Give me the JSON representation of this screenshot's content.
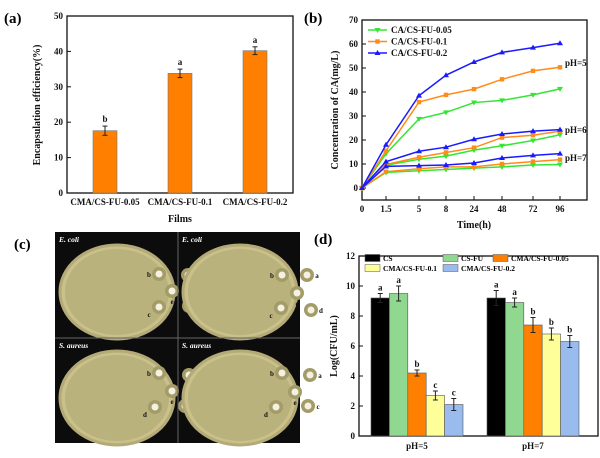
{
  "panels": {
    "a": "(a)",
    "b": "(b)",
    "c": "(c)",
    "d": "(d)"
  },
  "chart_data": [
    {
      "id": "a",
      "type": "bar",
      "title": "",
      "categories": [
        "CMA/CS-FU-0.05",
        "CMA/CS-FU-0.1",
        "CMA/CS-FU-0.2"
      ],
      "values": [
        17.6,
        33.8,
        40.2
      ],
      "errors": [
        1.3,
        1.2,
        1.1
      ],
      "letters": [
        "b",
        "a",
        "a"
      ],
      "xlabel": "Films",
      "ylabel": "Encapsulation efficiency(%)",
      "ylim": [
        0,
        50
      ],
      "yticks": [
        0,
        10,
        20,
        30,
        40,
        50
      ],
      "color": "#ff8000"
    },
    {
      "id": "b",
      "type": "line",
      "x": [
        "0",
        "1.5",
        "5",
        "8",
        "24",
        "48",
        "72",
        "96"
      ],
      "xlabel": "Time(h)",
      "ylabel": "Concentration of CA(mg/L)",
      "ylim": [
        -5,
        70
      ],
      "yticks": [
        0,
        10,
        20,
        30,
        40,
        50,
        60,
        70
      ],
      "legend": [
        {
          "name": "CA/CS-FU-0.05",
          "color": "#33e633",
          "marker": "triangle-down"
        },
        {
          "name": "CA/CS-FU-0.1",
          "color": "#ff8c1a",
          "marker": "square"
        },
        {
          "name": "CA/CS-FU-0.2",
          "color": "#1a1aff",
          "marker": "triangle-up"
        }
      ],
      "groups": [
        {
          "label": "pH=5",
          "series": [
            [
              0,
              14.3,
              28.8,
              31.5,
              35.6,
              36.5,
              38.8,
              41.3
            ],
            [
              0,
              15.5,
              35.8,
              38.8,
              41.2,
              45.3,
              48.8,
              50.3
            ],
            [
              0,
              18,
              38.5,
              47,
              52.5,
              56.5,
              58.5,
              60.3
            ]
          ]
        },
        {
          "label": "pH=6",
          "series": [
            [
              0,
              9.5,
              12,
              13.3,
              15.8,
              17.6,
              19.8,
              22.2
            ],
            [
              0,
              9.8,
              12.8,
              14.8,
              16.8,
              21,
              22,
              23.7
            ],
            [
              0,
              11,
              15.3,
              17,
              20.3,
              22.5,
              23.7,
              24.3
            ]
          ]
        },
        {
          "label": "pH=7",
          "series": [
            [
              0,
              6.5,
              7.2,
              7.7,
              8.3,
              8.8,
              9.6,
              9.8
            ],
            [
              0,
              6.8,
              8,
              8.8,
              8.8,
              10,
              11,
              11.8
            ],
            [
              0,
              9,
              9.3,
              9.6,
              10.4,
              12.5,
              13.6,
              14.3
            ]
          ]
        }
      ]
    },
    {
      "id": "d",
      "type": "bar",
      "categories": [
        "pH=5",
        "pH=7"
      ],
      "ylabel": "Log(CFU/mL)",
      "ylim": [
        0,
        12
      ],
      "yticks": [
        0,
        2,
        4,
        6,
        8,
        10,
        12
      ],
      "series": [
        {
          "name": "CS",
          "color": "#000000",
          "values": [
            9.2,
            9.2
          ],
          "errors": [
            0.3,
            0.5
          ],
          "letters": [
            "a",
            "a"
          ]
        },
        {
          "name": "CS-FU",
          "color": "#90d890",
          "values": [
            9.5,
            8.9
          ],
          "errors": [
            0.5,
            0.3
          ],
          "letters": [
            "a",
            "a"
          ]
        },
        {
          "name": "CMA/CS-FU-0.05",
          "color": "#ff8000",
          "values": [
            4.2,
            7.4
          ],
          "errors": [
            0.2,
            0.5
          ],
          "letters": [
            "b",
            "b"
          ]
        },
        {
          "name": "CMA/CS-FU-0.1",
          "color": "#ffff99",
          "values": [
            2.7,
            6.8
          ],
          "errors": [
            0.3,
            0.4
          ],
          "letters": [
            "c",
            "b"
          ]
        },
        {
          "name": "CMA/CS-FU-0.2",
          "color": "#99bbee",
          "values": [
            2.1,
            6.3
          ],
          "errors": [
            0.4,
            0.4
          ],
          "letters": [
            "c",
            "b"
          ]
        }
      ]
    }
  ],
  "photos": {
    "plates": [
      {
        "organism": "E. coli",
        "spots": [
          "a",
          "b",
          "c",
          "d",
          "e"
        ]
      },
      {
        "organism": "E. coli",
        "spots": [
          "a",
          "b",
          "c",
          "d",
          "e"
        ]
      },
      {
        "organism": "S. aureus",
        "spots": [
          "a",
          "b",
          "c",
          "d",
          "e"
        ]
      },
      {
        "organism": "S. aureus",
        "spots": [
          "a",
          "b",
          "c",
          "d",
          "e"
        ]
      }
    ]
  }
}
